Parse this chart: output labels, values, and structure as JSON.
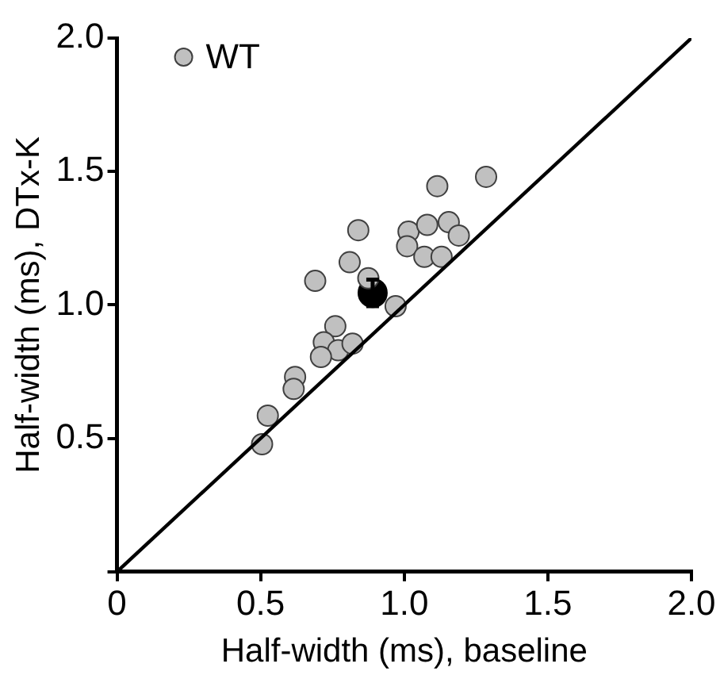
{
  "chart_data": {
    "type": "scatter",
    "xlabel": "Half-width (ms), baseline",
    "ylabel": "Half-width (ms), DTx-K",
    "xlim": [
      0,
      2
    ],
    "ylim": [
      0,
      2
    ],
    "xticks": [
      0,
      {
        "value": 0.5,
        "label": "0.5"
      },
      {
        "value": 1,
        "label": "1.0"
      },
      {
        "value": 1.5,
        "label": "1.5"
      },
      {
        "value": 2,
        "label": "2.0"
      }
    ],
    "yticks": [
      {
        "value": 0,
        "label": null
      },
      {
        "value": 0.5,
        "label": "0.5"
      },
      {
        "value": 1,
        "label": "1.0"
      },
      {
        "value": 1.5,
        "label": "1.5"
      },
      {
        "value": 2,
        "label": "2.0"
      }
    ],
    "grid": false,
    "legend": "top left",
    "marker": "circle",
    "series": [
      {
        "type": "line",
        "color": "#000000",
        "marker": "none",
        "line_style": "solid",
        "x": [
          0,
          2
        ],
        "values": [
          0,
          2
        ]
      },
      {
        "name": "WT",
        "color": "#c0c0c0",
        "x": [
          1.285,
          1.115,
          0.84,
          1.015,
          1.08,
          1.155,
          1.19,
          1.01,
          1.07,
          1.13,
          0.81,
          0.875,
          0.69,
          0.97,
          0.76,
          0.72,
          0.77,
          0.82,
          0.71,
          0.62,
          0.615,
          0.525,
          0.505
        ],
        "values": [
          1.48,
          1.445,
          1.28,
          1.275,
          1.3,
          1.31,
          1.26,
          1.22,
          1.18,
          1.18,
          1.16,
          1.1,
          1.09,
          0.995,
          0.92,
          0.86,
          0.83,
          0.855,
          0.805,
          0.73,
          0.685,
          0.585,
          0.478
        ]
      },
      {
        "color": "#000000",
        "x": [
          0.89
        ],
        "values": [
          1.045
        ],
        "errors": [
          0.05
        ],
        "xerrors": [
          0.03
        ]
      }
    ]
  }
}
